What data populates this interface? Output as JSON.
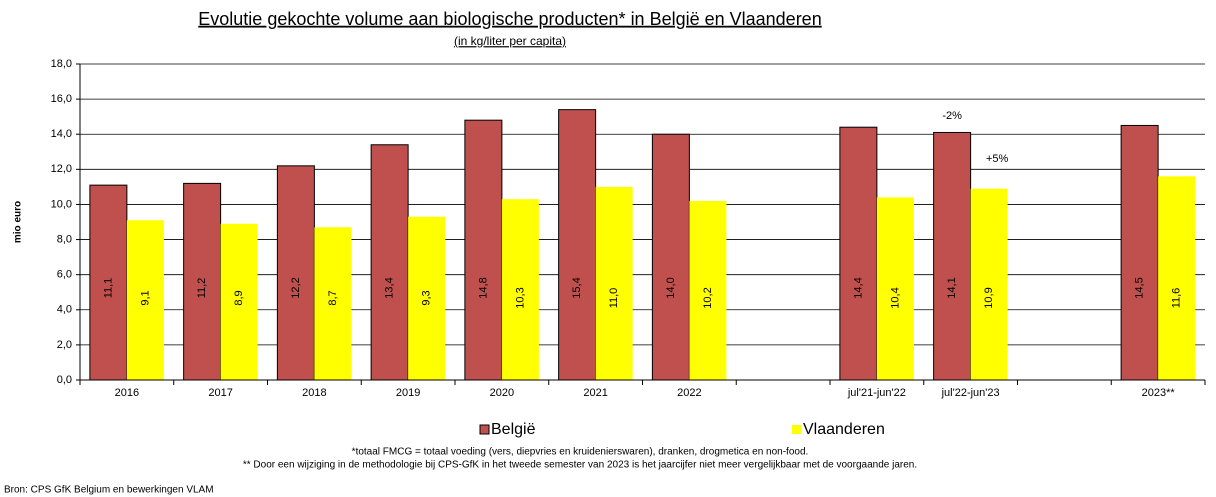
{
  "chart_data": {
    "type": "bar",
    "title": "Evolutie gekochte volume aan biologische producten* in België en Vlaanderen",
    "subtitle": "(in kg/liter per capita)",
    "y_label": "mio euro",
    "categories": [
      "2016",
      "2017",
      "2018",
      "2019",
      "2020",
      "2021",
      "2022",
      null,
      "jul'21-jun'22",
      "jul'22-jun'23",
      null,
      "2023**"
    ],
    "series": [
      {
        "name": "België",
        "color": "#c0504d",
        "values": [
          11.1,
          11.2,
          12.2,
          13.4,
          14.8,
          15.4,
          14.0,
          null,
          14.4,
          14.1,
          null,
          14.5
        ],
        "value_labels": [
          "11,1",
          "11,2",
          "12,2",
          "13,4",
          "14,8",
          "15,4",
          "14,0",
          null,
          "14,4",
          "14,1",
          null,
          "14,5"
        ]
      },
      {
        "name": "Vlaanderen",
        "color": "#ffff00",
        "values": [
          9.1,
          8.9,
          8.7,
          9.3,
          10.3,
          11.0,
          10.2,
          null,
          10.4,
          10.9,
          null,
          11.6
        ],
        "value_labels": [
          "9,1",
          "8,9",
          "8,7",
          "9,3",
          "10,3",
          "11,0",
          "10,2",
          null,
          "10,4",
          "10,9",
          null,
          "11,6"
        ]
      }
    ],
    "ylim": [
      0,
      18
    ],
    "yticks": [
      {
        "value": 0,
        "label": "0,0"
      },
      {
        "value": 2,
        "label": "2,0"
      },
      {
        "value": 4,
        "label": "4,0"
      },
      {
        "value": 6,
        "label": "6,0"
      },
      {
        "value": 8,
        "label": "8,0"
      },
      {
        "value": 10,
        "label": "10,0"
      },
      {
        "value": 12,
        "label": "12,0"
      },
      {
        "value": 14,
        "label": "14,0"
      },
      {
        "value": 16,
        "label": "16,0"
      },
      {
        "value": 18,
        "label": "18,0"
      }
    ],
    "grid": true,
    "annotations": [
      "-2%",
      "+5%"
    ],
    "footnotes": [
      "*totaal FMCG = totaal voeding (vers, diepvries en kruidenierswaren), dranken, drogmetica en non-food.",
      "** Door een wijziging in de methodologie bij CPS-GfK in het tweede semester van 2023 is het jaarcijfer niet meer vergelijkbaar met de voorgaande jaren."
    ],
    "source": "Bron: CPS GfK Belgium en bewerkingen VLAM"
  }
}
